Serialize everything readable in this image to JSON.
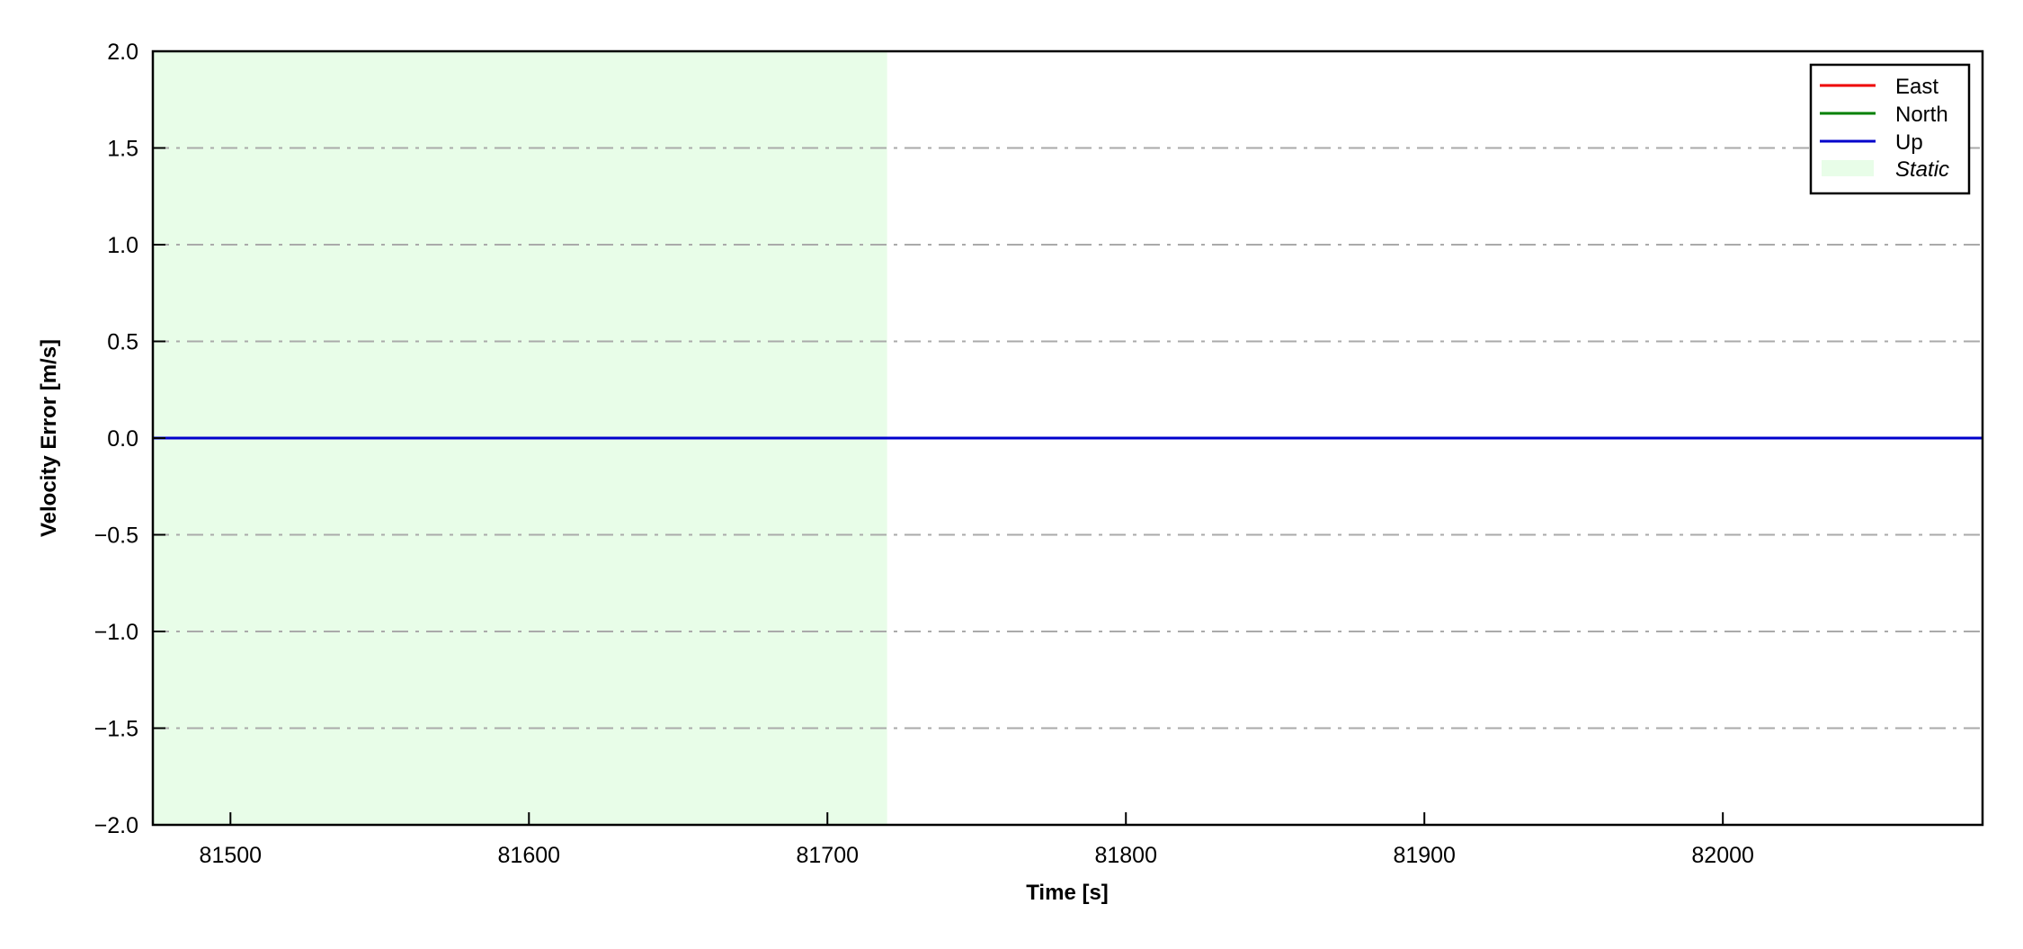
{
  "chart_data": {
    "type": "line",
    "title": "",
    "xlabel": "Time [s]",
    "ylabel": "Velocity Error [m/s]",
    "xlim": [
      81474,
      82087
    ],
    "ylim": [
      -2.0,
      2.0
    ],
    "xticks": [
      81500,
      81600,
      81700,
      81800,
      81900,
      82000
    ],
    "xtick_labels": [
      "81500",
      "81600",
      "81700",
      "81800",
      "81900",
      "82000"
    ],
    "yticks": [
      -2.0,
      -1.5,
      -1.0,
      -0.5,
      0.0,
      0.5,
      1.0,
      1.5,
      2.0
    ],
    "ytick_labels": [
      "−2.0",
      "−1.5",
      "−1.0",
      "−0.5",
      "0.0",
      "0.5",
      "1.0",
      "1.5",
      "2.0"
    ],
    "grid": "horizontal dash-dot",
    "grid_color": "#aaaaaa",
    "legend_placement": "top-right",
    "series": [
      {
        "name": "East",
        "color": "#ee0000",
        "x": [
          81474,
          82087
        ],
        "y": [
          0,
          0
        ]
      },
      {
        "name": "North",
        "color": "#008000",
        "x": [
          81474,
          82087
        ],
        "y": [
          0,
          0
        ]
      },
      {
        "name": "Up",
        "color": "#0000cc",
        "x": [
          81474,
          82087
        ],
        "y": [
          0,
          0
        ]
      }
    ],
    "shaded_regions": [
      {
        "name": "Static",
        "x_start": 81474,
        "x_end": 81720,
        "color": "#e8fde8"
      }
    ]
  }
}
